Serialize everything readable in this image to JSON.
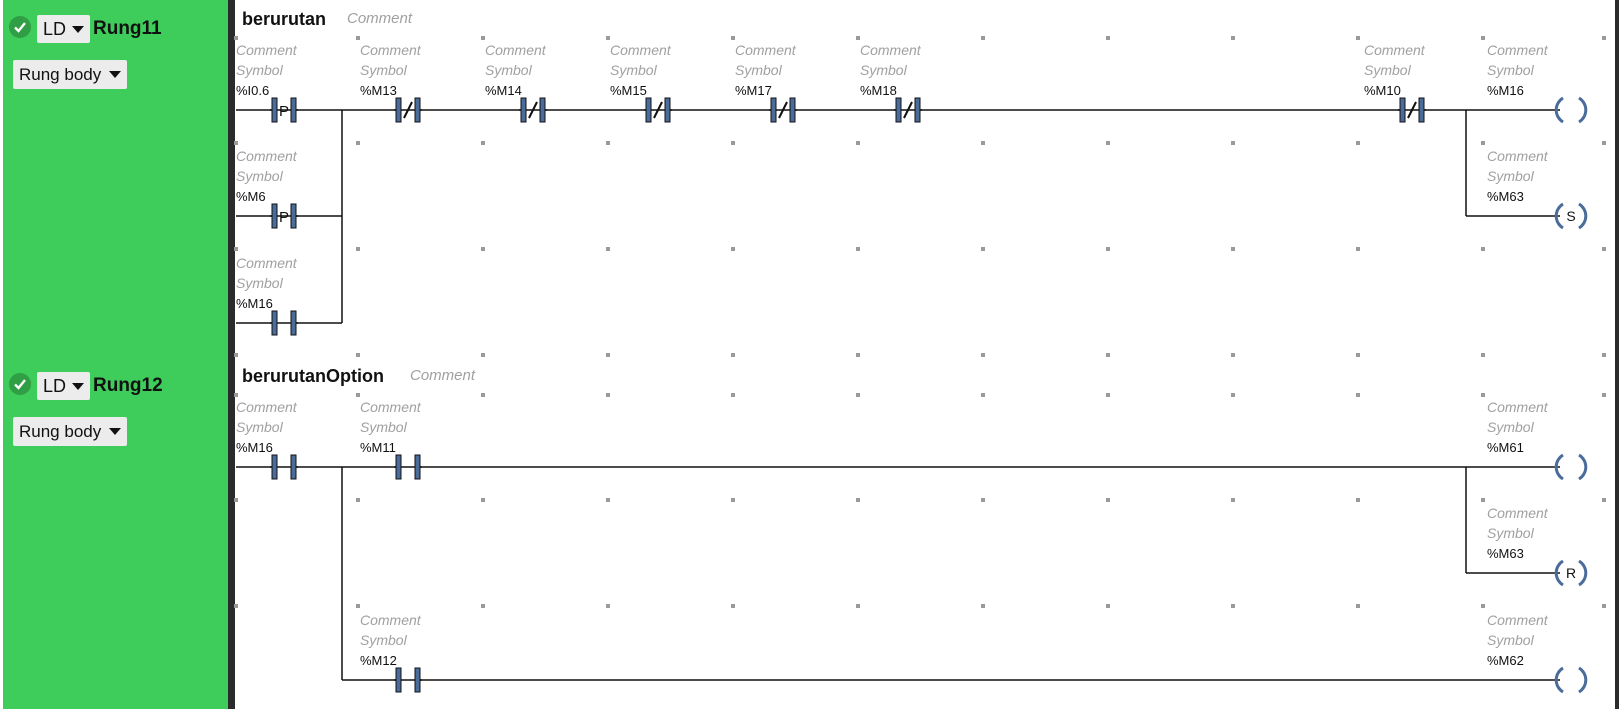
{
  "rungs": [
    {
      "id": "rung11",
      "name": "Rung11",
      "language": "LD",
      "view": "Rung body",
      "title": "berurutan",
      "comment": "Comment"
    },
    {
      "id": "rung12",
      "name": "Rung12",
      "language": "LD",
      "view": "Rung body",
      "title": "berurutanOption",
      "comment": "Comment"
    }
  ],
  "labels": {
    "comment": "Comment",
    "symbol": "Symbol"
  },
  "colors": {
    "rung_panel": "#3ecc5a",
    "check": "#2f9e44",
    "contact": "#4a6c9b"
  },
  "ladder": {
    "rung11": {
      "contacts": [
        {
          "addr": "%I0.6",
          "type": "P"
        },
        {
          "addr": "%M13",
          "type": "NC"
        },
        {
          "addr": "%M14",
          "type": "NC"
        },
        {
          "addr": "%M15",
          "type": "NC"
        },
        {
          "addr": "%M17",
          "type": "NC"
        },
        {
          "addr": "%M18",
          "type": "NC"
        },
        {
          "addr": "%M10",
          "type": "NC"
        },
        {
          "addr": "%M6",
          "type": "P"
        },
        {
          "addr": "%M16",
          "type": "NO"
        }
      ],
      "coils": [
        {
          "addr": "%M16",
          "type": ""
        },
        {
          "addr": "%M63",
          "type": "S"
        }
      ]
    },
    "rung12": {
      "contacts": [
        {
          "addr": "%M16",
          "type": "NO"
        },
        {
          "addr": "%M11",
          "type": "NO"
        },
        {
          "addr": "%M12",
          "type": "NO"
        }
      ],
      "coils": [
        {
          "addr": "%M61",
          "type": ""
        },
        {
          "addr": "%M63",
          "type": "R"
        },
        {
          "addr": "%M62",
          "type": ""
        }
      ]
    }
  }
}
